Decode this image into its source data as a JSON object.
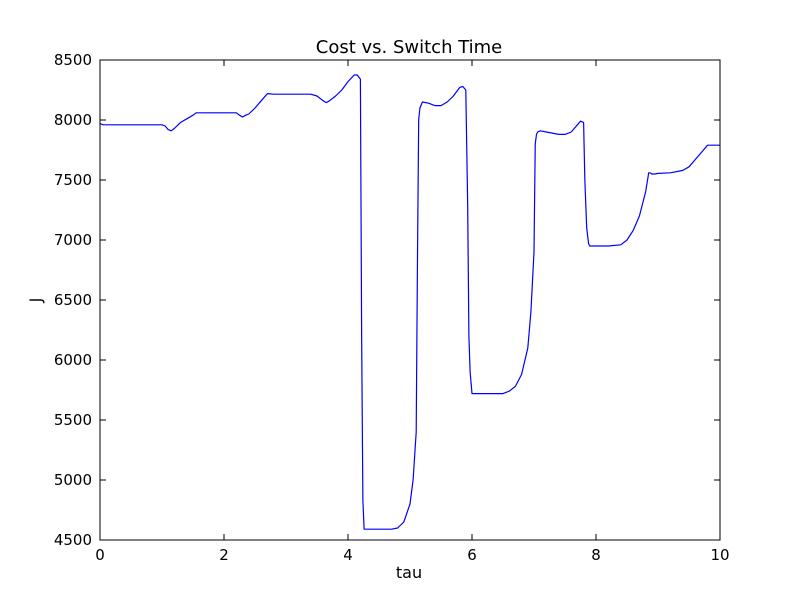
{
  "chart_data": {
    "type": "line",
    "title": "Cost vs. Switch Time",
    "xlabel": "tau",
    "ylabel": "J",
    "xlim": [
      0,
      10
    ],
    "ylim": [
      4500,
      8500
    ],
    "xticks": [
      0,
      2,
      4,
      6,
      8,
      10
    ],
    "yticks": [
      4500,
      5000,
      5500,
      6000,
      6500,
      7000,
      7500,
      8000,
      8500
    ],
    "grid": false,
    "line_color": "#0000ff",
    "series": [
      {
        "x": [
          0,
          0.05,
          0.2,
          0.5,
          0.8,
          1.0,
          1.05,
          1.1,
          1.15,
          1.2,
          1.3,
          1.4,
          1.5,
          1.55,
          1.6,
          1.8,
          2.0,
          2.2,
          2.25,
          2.3,
          2.35,
          2.4,
          2.5,
          2.6,
          2.7,
          2.8,
          3.0,
          3.2,
          3.4,
          3.5,
          3.6,
          3.65,
          3.7,
          3.8,
          3.9,
          4.0,
          4.1,
          4.15,
          4.2,
          4.22,
          4.24,
          4.26,
          4.3,
          4.5,
          4.7,
          4.8,
          4.9,
          5.0,
          5.05,
          5.1,
          5.12,
          5.14,
          5.16,
          5.2,
          5.3,
          5.4,
          5.5,
          5.6,
          5.7,
          5.8,
          5.85,
          5.9,
          5.93,
          5.95,
          5.97,
          6.0,
          6.03,
          6.1,
          6.3,
          6.5,
          6.6,
          6.7,
          6.8,
          6.9,
          6.95,
          7.0,
          7.02,
          7.04,
          7.06,
          7.1,
          7.2,
          7.4,
          7.5,
          7.6,
          7.7,
          7.75,
          7.8,
          7.82,
          7.85,
          7.88,
          7.9,
          8.0,
          8.2,
          8.4,
          8.5,
          8.6,
          8.7,
          8.8,
          8.85,
          8.87,
          8.9,
          8.95,
          9.0,
          9.2,
          9.4,
          9.5,
          9.6,
          9.7,
          9.8,
          9.9,
          10.0
        ],
        "y": [
          7970,
          7960,
          7960,
          7960,
          7960,
          7960,
          7950,
          7920,
          7910,
          7930,
          7980,
          8010,
          8040,
          8060,
          8060,
          8060,
          8060,
          8060,
          8040,
          8025,
          8040,
          8050,
          8100,
          8160,
          8220,
          8215,
          8215,
          8215,
          8215,
          8200,
          8160,
          8145,
          8160,
          8200,
          8250,
          8320,
          8375,
          8375,
          8340,
          6200,
          4830,
          4590,
          4590,
          4590,
          4590,
          4600,
          4650,
          4800,
          5000,
          5400,
          6800,
          8000,
          8100,
          8150,
          8140,
          8120,
          8120,
          8150,
          8200,
          8270,
          8280,
          8250,
          7300,
          6200,
          5900,
          5720,
          5720,
          5720,
          5720,
          5720,
          5740,
          5780,
          5880,
          6100,
          6400,
          6900,
          7800,
          7880,
          7900,
          7910,
          7900,
          7880,
          7880,
          7900,
          7960,
          7990,
          7980,
          7500,
          7100,
          6970,
          6950,
          6950,
          6950,
          6960,
          7000,
          7080,
          7200,
          7400,
          7560,
          7560,
          7550,
          7550,
          7555,
          7560,
          7580,
          7610,
          7670,
          7730,
          7790,
          7790,
          7790
        ]
      }
    ]
  }
}
